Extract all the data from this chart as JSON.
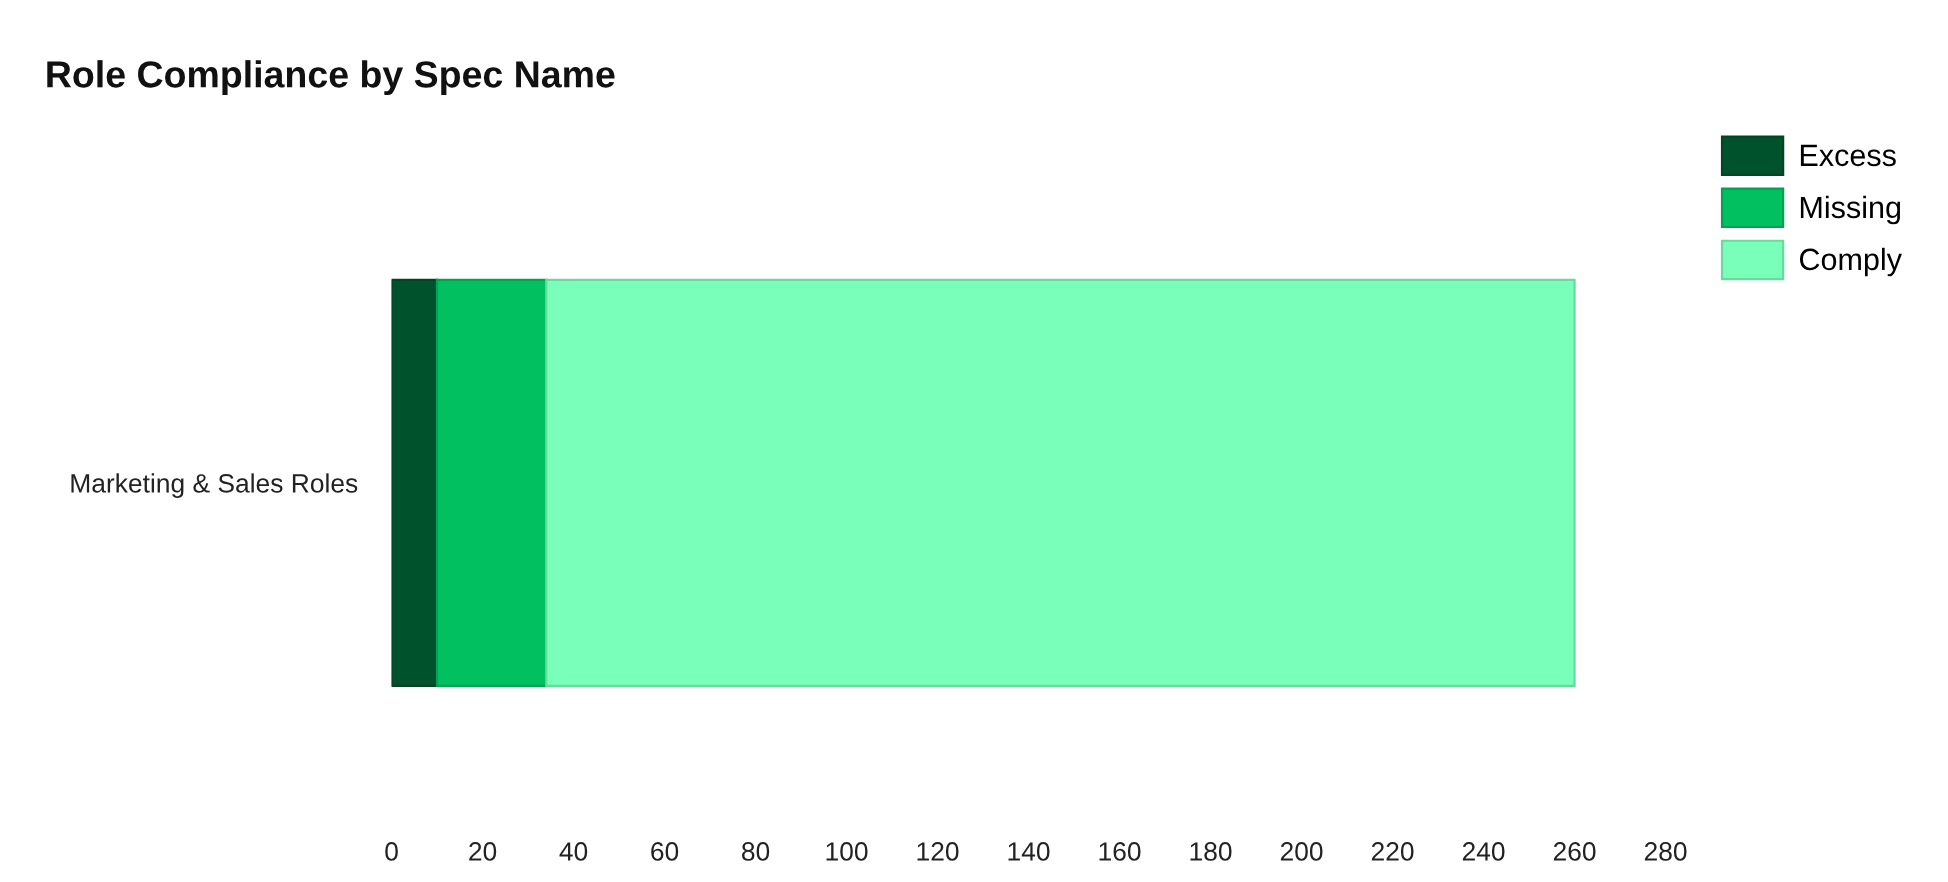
{
  "chart_data": {
    "type": "bar",
    "title": "Role Compliance by Spec Name",
    "orientation": "horizontal",
    "stacked": true,
    "categories": [
      "Marketing & Sales Roles"
    ],
    "series": [
      {
        "name": "Excess",
        "color": "#00522d",
        "values": [
          10
        ]
      },
      {
        "name": "Missing",
        "color": "#00c060",
        "values": [
          24
        ]
      },
      {
        "name": "Comply",
        "color": "#7affbb",
        "values": [
          226
        ]
      }
    ],
    "xlim": [
      0,
      280
    ],
    "xticks": [
      0,
      20,
      40,
      60,
      80,
      100,
      120,
      140,
      160,
      180,
      200,
      220,
      240,
      260,
      280
    ],
    "legend": "top right"
  }
}
